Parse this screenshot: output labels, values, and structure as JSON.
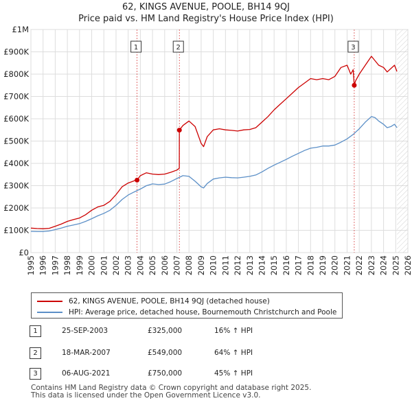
{
  "chart_data": {
    "type": "line",
    "title": "62, KINGS AVENUE, POOLE, BH14 9QJ",
    "subtitle": "Price paid vs. HM Land Registry's House Price Index (HPI)",
    "xlabel": "",
    "ylabel": "",
    "xlim": [
      1995,
      2026
    ],
    "ylim": [
      0,
      1000000
    ],
    "x_ticks": [
      "1995",
      "1996",
      "1997",
      "1998",
      "1999",
      "2000",
      "2001",
      "2002",
      "2003",
      "2004",
      "2005",
      "2006",
      "2007",
      "2008",
      "2009",
      "2010",
      "2011",
      "2012",
      "2013",
      "2014",
      "2015",
      "2016",
      "2017",
      "2018",
      "2019",
      "2020",
      "2021",
      "2022",
      "2023",
      "2024",
      "2025",
      "2026"
    ],
    "y_ticks": [
      {
        "value": 0,
        "label": "£0"
      },
      {
        "value": 100000,
        "label": "£100K"
      },
      {
        "value": 200000,
        "label": "£200K"
      },
      {
        "value": 300000,
        "label": "£300K"
      },
      {
        "value": 400000,
        "label": "£400K"
      },
      {
        "value": 500000,
        "label": "£500K"
      },
      {
        "value": 600000,
        "label": "£600K"
      },
      {
        "value": 700000,
        "label": "£700K"
      },
      {
        "value": 800000,
        "label": "£800K"
      },
      {
        "value": 900000,
        "label": "£900K"
      },
      {
        "value": 1000000,
        "label": "£1M"
      }
    ],
    "grid": true,
    "future_hatch_from": 2025.1,
    "series": [
      {
        "name": "62, KINGS AVENUE, POOLE, BH14 9QJ (detached house)",
        "color": "#cc0000",
        "x": [
          1995.0,
          1995.5,
          1996.0,
          1996.5,
          1997.0,
          1997.5,
          1998.0,
          1998.5,
          1999.0,
          1999.5,
          2000.0,
          2000.5,
          2001.0,
          2001.5,
          2002.0,
          2002.5,
          2003.0,
          2003.5,
          2003.73,
          2004.0,
          2004.5,
          2005.0,
          2005.5,
          2006.0,
          2006.5,
          2007.0,
          2007.2,
          2007.21,
          2007.5,
          2008.0,
          2008.5,
          2009.0,
          2009.2,
          2009.5,
          2010.0,
          2010.5,
          2011.0,
          2011.5,
          2012.0,
          2012.5,
          2013.0,
          2013.5,
          2014.0,
          2014.5,
          2015.0,
          2015.5,
          2016.0,
          2016.5,
          2017.0,
          2017.5,
          2018.0,
          2018.5,
          2019.0,
          2019.5,
          2020.0,
          2020.5,
          2021.0,
          2021.3,
          2021.5,
          2021.59,
          2021.7,
          2022.0,
          2022.5,
          2023.0,
          2023.3,
          2023.6,
          2024.0,
          2024.3,
          2024.6,
          2024.9,
          2025.1
        ],
        "values": [
          110000,
          108000,
          107000,
          109000,
          118000,
          128000,
          140000,
          148000,
          155000,
          170000,
          190000,
          205000,
          212000,
          230000,
          260000,
          295000,
          312000,
          322000,
          325000,
          345000,
          358000,
          352000,
          350000,
          352000,
          360000,
          370000,
          378000,
          549000,
          570000,
          590000,
          565000,
          490000,
          475000,
          520000,
          550000,
          555000,
          550000,
          548000,
          545000,
          550000,
          552000,
          560000,
          585000,
          610000,
          640000,
          665000,
          690000,
          715000,
          740000,
          760000,
          780000,
          775000,
          780000,
          775000,
          790000,
          830000,
          840000,
          800000,
          820000,
          750000,
          770000,
          800000,
          840000,
          880000,
          860000,
          840000,
          830000,
          810000,
          825000,
          840000,
          812000
        ]
      },
      {
        "name": "HPI: Average price, detached house, Bournemouth Christchurch and Poole",
        "color": "#5b8fc7",
        "x": [
          1995.0,
          1995.5,
          1996.0,
          1996.5,
          1997.0,
          1997.5,
          1998.0,
          1998.5,
          1999.0,
          1999.5,
          2000.0,
          2000.5,
          2001.0,
          2001.5,
          2002.0,
          2002.5,
          2003.0,
          2003.5,
          2004.0,
          2004.5,
          2005.0,
          2005.5,
          2006.0,
          2006.5,
          2007.0,
          2007.5,
          2008.0,
          2008.5,
          2009.0,
          2009.2,
          2009.5,
          2010.0,
          2010.5,
          2011.0,
          2011.5,
          2012.0,
          2012.5,
          2013.0,
          2013.5,
          2014.0,
          2014.5,
          2015.0,
          2015.5,
          2016.0,
          2016.5,
          2017.0,
          2017.5,
          2018.0,
          2018.5,
          2019.0,
          2019.5,
          2020.0,
          2020.5,
          2021.0,
          2021.5,
          2022.0,
          2022.5,
          2023.0,
          2023.3,
          2023.6,
          2024.0,
          2024.3,
          2024.6,
          2024.9,
          2025.1
        ],
        "values": [
          95000,
          94000,
          94000,
          97000,
          103000,
          110000,
          118000,
          124000,
          130000,
          140000,
          152000,
          165000,
          176000,
          190000,
          212000,
          238000,
          258000,
          272000,
          285000,
          300000,
          308000,
          305000,
          307000,
          318000,
          332000,
          345000,
          342000,
          320000,
          295000,
          290000,
          310000,
          330000,
          335000,
          338000,
          336000,
          335000,
          338000,
          342000,
          348000,
          362000,
          378000,
          392000,
          405000,
          418000,
          432000,
          445000,
          458000,
          468000,
          472000,
          478000,
          478000,
          482000,
          495000,
          510000,
          530000,
          555000,
          585000,
          610000,
          605000,
          590000,
          575000,
          560000,
          565000,
          575000,
          560000
        ]
      }
    ],
    "sales": [
      {
        "label": "1",
        "x": 2003.73,
        "value": 325000
      },
      {
        "label": "2",
        "x": 2007.21,
        "value": 549000
      },
      {
        "label": "3",
        "x": 2021.59,
        "value": 750000
      }
    ]
  },
  "legend": {
    "property_label": "62, KINGS AVENUE, POOLE, BH14 9QJ (detached house)",
    "hpi_label": "HPI: Average price, detached house, Bournemouth Christchurch and Poole"
  },
  "table": {
    "rows": [
      {
        "num": "1",
        "date": "25-SEP-2003",
        "price": "£325,000",
        "hpi": "16% ↑ HPI"
      },
      {
        "num": "2",
        "date": "18-MAR-2007",
        "price": "£549,000",
        "hpi": "64% ↑ HPI"
      },
      {
        "num": "3",
        "date": "06-AUG-2021",
        "price": "£750,000",
        "hpi": "45% ↑ HPI"
      }
    ]
  },
  "footer": {
    "line1": "Contains HM Land Registry data © Crown copyright and database right 2025.",
    "line2": "This data is licensed under the Open Government Licence v3.0."
  },
  "colors": {
    "property": "#cc0000",
    "hpi": "#5b8fc7",
    "grid": "#dddddd",
    "vline": "#cc0000"
  }
}
